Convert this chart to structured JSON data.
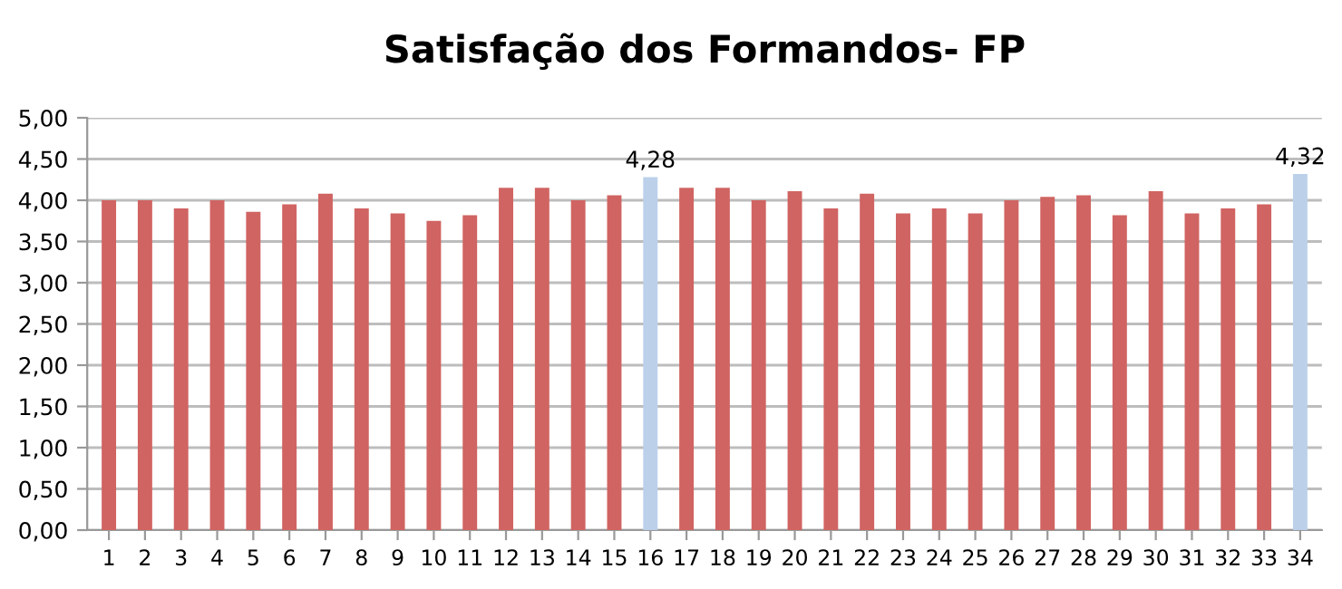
{
  "chart_data": {
    "type": "bar",
    "title": "Satisfação dos Formandos- FP",
    "categories": [
      "1",
      "2",
      "3",
      "4",
      "5",
      "6",
      "7",
      "8",
      "9",
      "10",
      "11",
      "12",
      "13",
      "14",
      "15",
      "16",
      "17",
      "18",
      "19",
      "20",
      "21",
      "22",
      "23",
      "24",
      "25",
      "26",
      "27",
      "28",
      "29",
      "30",
      "31",
      "32",
      "33",
      "34"
    ],
    "values": [
      4.0,
      4.0,
      3.9,
      4.0,
      3.86,
      3.95,
      4.08,
      3.9,
      3.84,
      3.75,
      3.82,
      4.15,
      4.15,
      4.0,
      4.06,
      4.28,
      4.15,
      4.15,
      4.0,
      4.11,
      3.9,
      4.08,
      3.84,
      3.9,
      3.84,
      4.0,
      4.04,
      4.06,
      3.82,
      4.11,
      3.84,
      3.9,
      3.95,
      4.32
    ],
    "colors": [
      "#d06462",
      "#d06462",
      "#d06462",
      "#d06462",
      "#d06462",
      "#d06462",
      "#d06462",
      "#d06462",
      "#d06462",
      "#d06462",
      "#d06462",
      "#d06462",
      "#d06462",
      "#d06462",
      "#d06462",
      "#bcd0ea",
      "#d06462",
      "#d06462",
      "#d06462",
      "#d06462",
      "#d06462",
      "#d06462",
      "#d06462",
      "#d06462",
      "#d06462",
      "#d06462",
      "#d06462",
      "#d06462",
      "#d06462",
      "#d06462",
      "#d06462",
      "#d06462",
      "#d06462",
      "#bcd0ea"
    ],
    "value_labels": [
      null,
      null,
      null,
      null,
      null,
      null,
      null,
      null,
      null,
      null,
      null,
      null,
      null,
      null,
      null,
      "4,28",
      null,
      null,
      null,
      null,
      null,
      null,
      null,
      null,
      null,
      null,
      null,
      null,
      null,
      null,
      null,
      null,
      null,
      "4,32"
    ],
    "ylim": [
      0,
      5
    ],
    "yticks": [
      {
        "value": 0,
        "label": "0,00"
      },
      {
        "value": 0.5,
        "label": "0,50"
      },
      {
        "value": 1,
        "label": "1,00"
      },
      {
        "value": 1.5,
        "label": "1,50"
      },
      {
        "value": 2,
        "label": "2,00"
      },
      {
        "value": 2.5,
        "label": "2,50"
      },
      {
        "value": 3,
        "label": "3,00"
      },
      {
        "value": 3.5,
        "label": "3,50"
      },
      {
        "value": 4,
        "label": "4,00"
      },
      {
        "value": 4.5,
        "label": "4,50"
      },
      {
        "value": 5,
        "label": "5,00"
      }
    ],
    "grid": "y",
    "legend": false
  }
}
